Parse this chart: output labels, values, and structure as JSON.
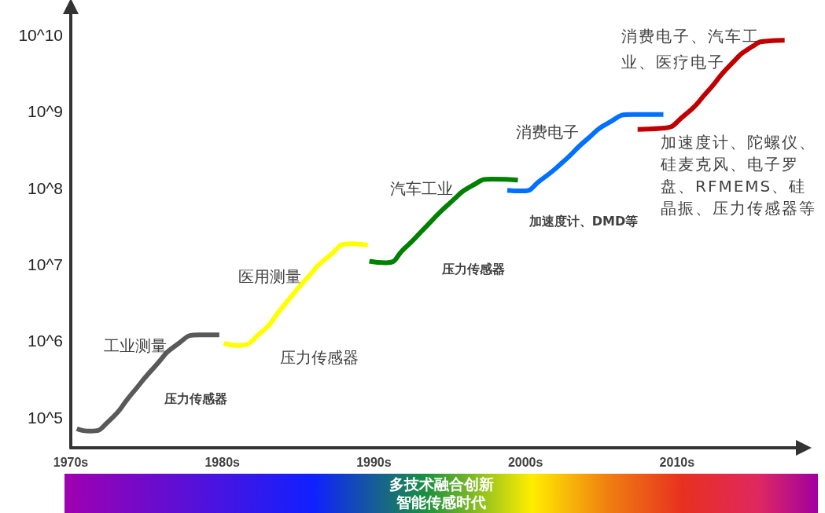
{
  "chart_data": {
    "type": "line",
    "series": [
      {
        "color": "#595959",
        "x": [
          1970.4,
          1971.3,
          1972.5,
          1974,
          1975.5,
          1977,
          1978.5,
          1979.8
        ],
        "values": [
          71000,
          66000,
          89000,
          200000,
          450000,
          890000,
          1200000,
          1200000
        ]
      },
      {
        "color": "#ffff00",
        "x": [
          1980.1,
          1981,
          1982.5,
          1984,
          1985.5,
          1987,
          1988.5,
          1989.6
        ],
        "values": [
          930000,
          870000,
          1260000,
          2800000,
          6300000,
          12600000,
          18600000,
          17800000
        ]
      },
      {
        "color": "#008000",
        "x": [
          1989.7,
          1990.8,
          1992,
          1993.5,
          1995,
          1996.5,
          1997.8,
          1999.5
        ],
        "values": [
          11000000,
          10500000,
          16000000,
          32000000,
          63000000,
          107000000,
          130000000,
          126000000
        ]
      },
      {
        "color": "#0070ff",
        "x": [
          1998.8,
          1999.8,
          2001,
          2002.5,
          2004,
          2005.5,
          2007,
          2009.1
        ],
        "values": [
          93000000,
          91000000,
          126000000,
          220000000,
          420000000,
          710000000,
          910000000,
          910000000
        ]
      },
      {
        "color": "#c00000",
        "x": [
          2007.4,
          2009,
          2010.5,
          2012,
          2013.5,
          2015,
          2016,
          2017.1
        ],
        "values": [
          580000000,
          600000000,
          890000000,
          1800000000,
          4000000000,
          7100000000,
          8300000000,
          8500000000
        ]
      }
    ],
    "log": "y",
    "xlim": [
      1970,
      2018
    ],
    "xticks": [
      {
        "value": 1970,
        "label": "1970s"
      },
      {
        "value": 1980,
        "label": "1980s"
      },
      {
        "value": 1990,
        "label": "1990s"
      },
      {
        "value": 2000,
        "label": "2000s"
      },
      {
        "value": 2010,
        "label": "2010s"
      }
    ],
    "ylim": [
      40000,
      20000000000
    ],
    "yticks": [
      {
        "value": 100000,
        "label": "10^5"
      },
      {
        "value": 1000000,
        "label": "10^6"
      },
      {
        "value": 10000000,
        "label": "10^7"
      },
      {
        "value": 100000000,
        "label": "10^8"
      },
      {
        "value": 1000000000,
        "label": "10^9"
      },
      {
        "value": 10000000000,
        "label": "10^10"
      }
    ],
    "grid": false,
    "marker": "none",
    "line_style": "solid",
    "annotations": [
      "工业测量",
      "压力传感器",
      "医用测量",
      "压力传感器",
      "汽车工业",
      "压力传感器",
      "消费电子",
      "加速度计、DMD等",
      "消费电子、汽车工业、医疗电子",
      "加速度计、陀螺仪、硅麦克风、电子罗盘、RFMEMS、硅晶振、压力传感器等",
      "多技术融合创新",
      "智能传感时代"
    ]
  }
}
